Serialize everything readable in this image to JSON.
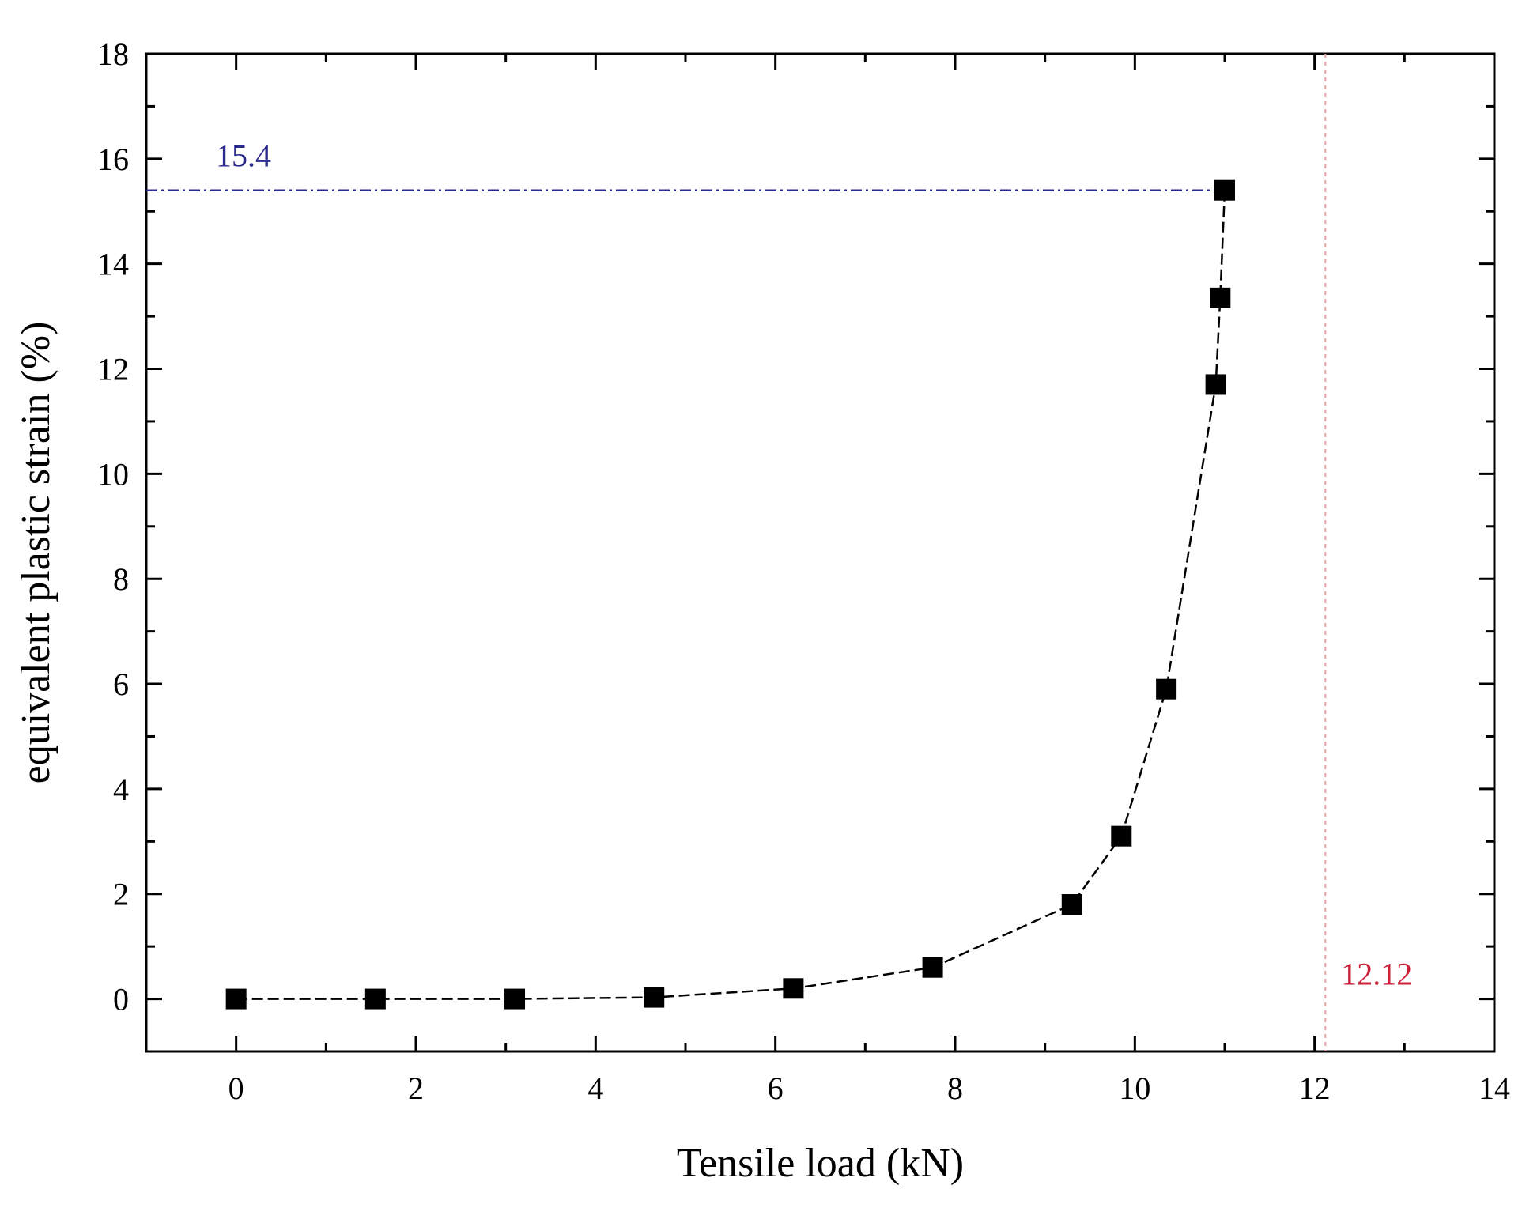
{
  "chart_data": {
    "type": "line",
    "title": "",
    "xlabel": "Tensile load (kN)",
    "ylabel": "equivalent plastic strain (%)",
    "xlim": [
      -1,
      14
    ],
    "ylim": [
      -1,
      18
    ],
    "xticks": [
      0,
      2,
      4,
      6,
      8,
      10,
      12,
      14
    ],
    "yticks": [
      0,
      2,
      4,
      6,
      8,
      10,
      12,
      14,
      16,
      18
    ],
    "grid": false,
    "marker": "square",
    "series": [
      {
        "color": "#000000",
        "x": [
          0,
          1.55,
          3.1,
          4.65,
          6.2,
          7.75,
          9.3,
          9.85,
          10.35,
          10.9,
          10.95,
          11.0
        ],
        "y": [
          0,
          0,
          0,
          0.03,
          0.2,
          0.6,
          1.8,
          3.1,
          5.9,
          11.7,
          13.35,
          15.4
        ]
      }
    ],
    "annotations": [
      {
        "label": "15.4",
        "value": 15.4,
        "orientation": "horizontal",
        "color": "#2a2a8c"
      },
      {
        "label": "12.12",
        "value": 12.12,
        "orientation": "vertical",
        "color": "#cc1f3a"
      }
    ]
  }
}
